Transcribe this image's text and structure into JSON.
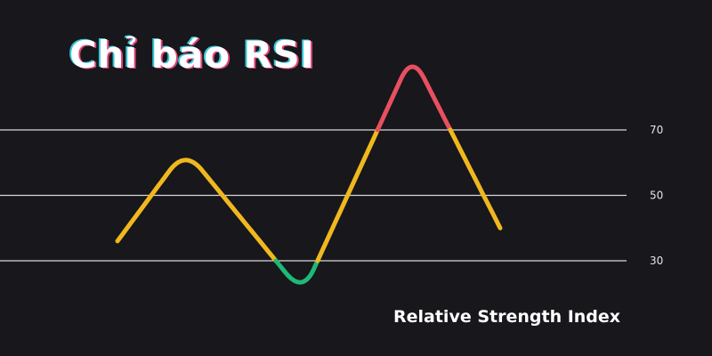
{
  "title": "Chỉ báo RSI",
  "subtitle": "Relative Strength Index",
  "colors": {
    "background": "#17171c",
    "neutral": "#f0b81e",
    "overbought": "#e8505f",
    "oversold": "#1fb877",
    "levels": "#d8d8d8"
  },
  "chart_data": {
    "type": "line",
    "series": [
      {
        "values": [
          36,
          64,
          20,
          93,
          40
        ]
      }
    ],
    "levels": [
      {
        "label": "70",
        "value": 70
      },
      {
        "label": "50",
        "value": 50
      },
      {
        "label": "30",
        "value": 30
      }
    ],
    "zones": [
      {
        "range": "above 70",
        "color": "#e8505f"
      },
      {
        "range": "30 to 70",
        "color": "#f0b81e"
      },
      {
        "range": "below 30",
        "color": "#1fb877"
      }
    ],
    "ylim": [
      0,
      100
    ],
    "grid": false,
    "legend": "none"
  }
}
